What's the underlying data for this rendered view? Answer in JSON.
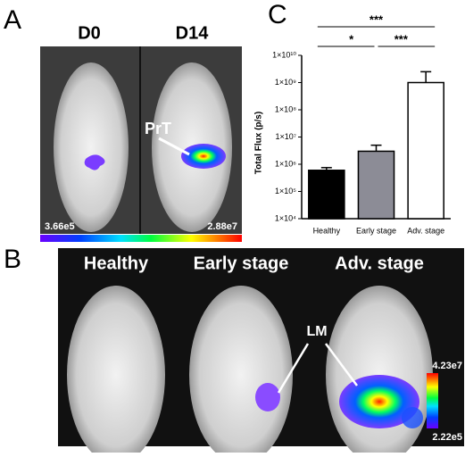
{
  "panel_a": {
    "letter": "A",
    "labels": [
      "D0",
      "D14"
    ],
    "annotation": "PrT",
    "scale_min": "3.66e5",
    "scale_max": "2.88e7"
  },
  "panel_b": {
    "letter": "B",
    "labels": [
      "Healthy",
      "Early stage",
      "Adv. stage"
    ],
    "annotation": "LM",
    "scale_max": "4.23e7",
    "scale_min": "2.22e5"
  },
  "chart_data": {
    "type": "bar",
    "letter": "C",
    "y_label": "Total Flux (p/s)",
    "log_scale": true,
    "categories": [
      "Healthy",
      "Early stage",
      "Adv. stage"
    ],
    "values": [
      600000,
      3000000,
      1000000000
    ],
    "errors": [
      150000,
      2000000,
      1500000000
    ],
    "colors": [
      "#000000",
      "#8c8c96",
      "#ffffff"
    ],
    "significance": [
      "***",
      "*",
      "***"
    ],
    "ylim": [
      10000,
      10000000000
    ],
    "yticks": [
      {
        "value": 10000,
        "label": "1×10⁴"
      },
      {
        "value": 100000,
        "label": "1×10⁵"
      },
      {
        "value": 1000000,
        "label": "1×10⁶"
      },
      {
        "value": 10000000,
        "label": "1×10⁷"
      },
      {
        "value": 100000000,
        "label": "1×10⁸"
      },
      {
        "value": 1000000000,
        "label": "1×10⁹"
      },
      {
        "value": 10000000000,
        "label": "1×10¹⁰"
      }
    ]
  }
}
